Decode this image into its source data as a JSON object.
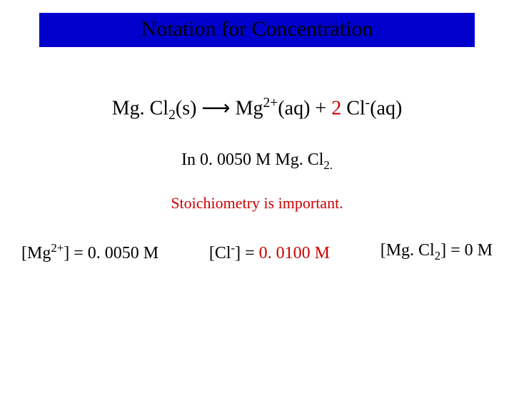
{
  "title": "Notation for Concentration",
  "colors": {
    "title_bg": "#0000cc",
    "background": "#ffffff",
    "red": "#cc0000",
    "text": "#000000"
  },
  "fonts": {
    "family": "Times New Roman",
    "title_size_pt": 30,
    "equation_size_pt": 28,
    "subtitle_size_pt": 24,
    "note_size_pt": 22,
    "row_size_pt": 24
  },
  "equation": {
    "lhs_species": "Mg. Cl",
    "lhs_sub": "2",
    "lhs_state": "(s)",
    "arrow": "⟶",
    "p1_species": "Mg",
    "p1_sup": "2+",
    "p1_state": "(aq)",
    "plus": " + ",
    "coef2": "2",
    "p2_species": " Cl",
    "p2_sup": "-",
    "p2_state": "(aq)"
  },
  "subtitle": {
    "prefix": "In 0. 0050 M Mg. Cl",
    "sub": "2.",
    "suffix": ""
  },
  "note": "Stoichiometry is important.",
  "row": {
    "mg": {
      "open": "[Mg",
      "sup": "2+",
      "close": "] = 0. 0050 M"
    },
    "cl": {
      "open": "[Cl",
      "sup": "-",
      "close_a": "] = ",
      "value": "0. 0100 M"
    },
    "mgcl2": {
      "open": "[Mg. Cl",
      "sub": "2",
      "close": "] = 0 M"
    }
  }
}
